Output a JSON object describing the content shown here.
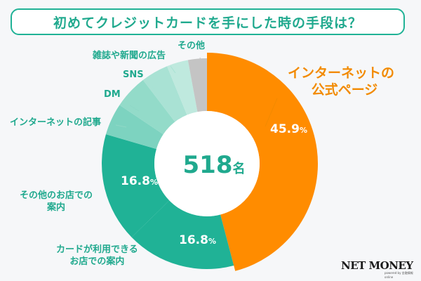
{
  "chart_data": {
    "type": "pie",
    "variant": "donut",
    "title": "初めてクレジットカードを手にした時の手段は？",
    "total": {
      "value": 518,
      "unit": "名"
    },
    "start": "top",
    "direction": "clockwise",
    "slices": [
      {
        "label": "インターネットの公式ページ",
        "label_lines": [
          "インターネットの",
          "公式ページ"
        ],
        "value": 45.9,
        "display": "45.9",
        "color": "#ff8c00",
        "show_value": true
      },
      {
        "label": "カードが利用できるお店での案内",
        "label_lines": [
          "カードが利用できる",
          "お店での案内"
        ],
        "value": 16.8,
        "display": "16.8",
        "color": "#20b296",
        "show_value": true
      },
      {
        "label": "その他のお店での案内",
        "label_lines": [
          "その他のお店での",
          "案内"
        ],
        "value": 16.8,
        "display": "16.8",
        "color": "#20b296",
        "show_value": true
      },
      {
        "label": "インターネットの記事",
        "label_lines": [
          "インターネットの記事"
        ],
        "value": 4.9,
        "color": "#7dd3c0",
        "show_value": false
      },
      {
        "label": "DM",
        "label_lines": [
          "DM"
        ],
        "value": 5.2,
        "color": "#93dbc9",
        "show_value": false
      },
      {
        "label": "SNS",
        "label_lines": [
          "SNS"
        ],
        "value": 4.2,
        "color": "#a9e2d4",
        "show_value": false
      },
      {
        "label": "雑誌や新聞の広告",
        "label_lines": [
          "雑誌や新聞の広告"
        ],
        "value": 3.3,
        "color": "#bfe9de",
        "show_value": false
      },
      {
        "label": "その他",
        "label_lines": [
          "その他"
        ],
        "value": 2.9,
        "color": "#c4c4c4",
        "show_value": false
      }
    ],
    "percent_suffix": "%",
    "legend": "none"
  },
  "brand": {
    "logo": "NET MONEY",
    "tagline": "powered by 金融情報 online"
  }
}
